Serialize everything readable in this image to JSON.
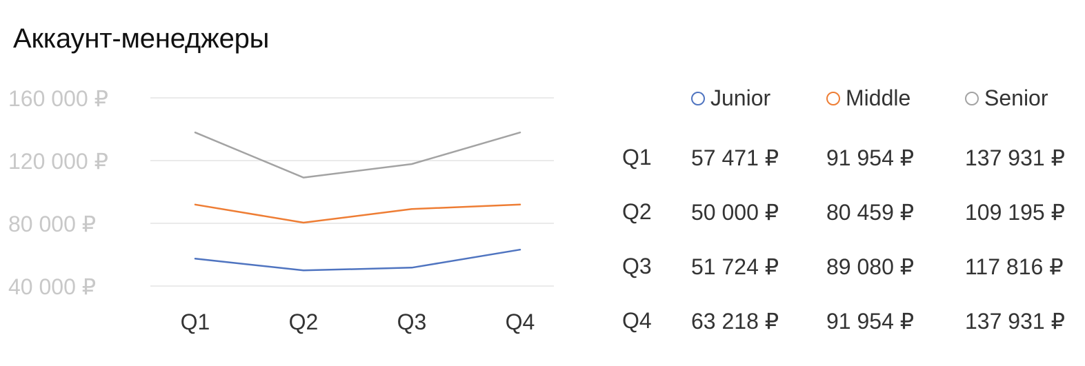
{
  "title": "Аккаунт-менеджеры",
  "colors": {
    "Junior": "#4f74c0",
    "Middle": "#ee7d34",
    "Senior": "#a3a3a3",
    "grid": "#e4e4e4",
    "ytick": "#c8c8c8"
  },
  "chart_data": {
    "type": "line",
    "categories": [
      "Q1",
      "Q2",
      "Q3",
      "Q4"
    ],
    "series": [
      {
        "name": "Junior",
        "values": [
          57471,
          50000,
          51724,
          63218
        ]
      },
      {
        "name": "Middle",
        "values": [
          91954,
          80459,
          89080,
          91954
        ]
      },
      {
        "name": "Senior",
        "values": [
          137931,
          109195,
          117816,
          137931
        ]
      }
    ],
    "yticks": [
      {
        "value": 40000,
        "label": "40 000 ₽"
      },
      {
        "value": 80000,
        "label": "80 000 ₽"
      },
      {
        "value": 120000,
        "label": "120 000 ₽"
      },
      {
        "value": 160000,
        "label": "160 000 ₽"
      }
    ],
    "ylim": [
      40000,
      160000
    ],
    "grid": true,
    "legend": "top-right",
    "title": "Аккаунт-менеджеры",
    "xlabel": "",
    "ylabel": ""
  },
  "table": {
    "columns": [
      "Junior",
      "Middle",
      "Senior"
    ],
    "rows": [
      {
        "label": "Q1",
        "values": [
          "57 471 ₽",
          "91 954 ₽",
          "137 931 ₽"
        ]
      },
      {
        "label": "Q2",
        "values": [
          "50 000 ₽",
          "80 459 ₽",
          "109 195 ₽"
        ]
      },
      {
        "label": "Q3",
        "values": [
          "51 724 ₽",
          "89 080 ₽",
          "117 816 ₽"
        ]
      },
      {
        "label": "Q4",
        "values": [
          "63 218 ₽",
          "91 954 ₽",
          "137 931 ₽"
        ]
      }
    ]
  }
}
